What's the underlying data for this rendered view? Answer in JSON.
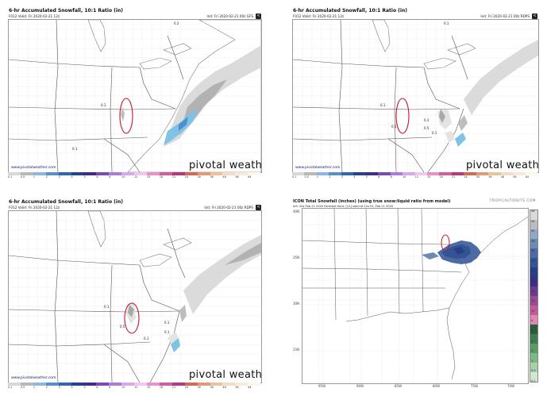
{
  "panels": [
    {
      "title": "6-hr Accumulated Snowfall, 10:1 Ratio (in)",
      "subtitle": "F012 Valid: Fri 2020-02-21 12z",
      "init": "Init: Fri 2020-02-21 00z GFS",
      "brand": "pivotal weather",
      "url": "www.pivotalweather.com",
      "map_labels": [
        "0.1",
        "0.2",
        "0.1"
      ]
    },
    {
      "title": "6-hr Accumulated Snowfall, 10:1 Ratio (in)",
      "subtitle": "F012 Valid: Fri 2020-02-21 12z",
      "init": "Init: Fri 2020-02-21 00z RDPS",
      "brand": "pivotal weather",
      "url": "www.pivotalweather.com",
      "map_labels": [
        "0.1",
        "0.5",
        "0.3",
        "0.5",
        "0.1",
        "0.1"
      ]
    },
    {
      "title": "6-hr Accumulated Snowfall, 10:1 Ratio (in)",
      "subtitle": "F012 Valid: Fri 2020-02-21 12z",
      "init": "Init: Fri 2020-02-21 00z RDPS",
      "brand": "pivotal weather",
      "url": "www.pivotalweather.com",
      "map_labels": [
        "0.1",
        "0.5",
        "0.1",
        "0.1",
        "0.1"
      ]
    },
    {
      "title": "ICON Total Snowfall (inches) (using true snow:liquid ratio from model)",
      "subtitle": "Init: 00z Feb 21 2020   Forecast Hour: [12]   valid at 12z Fri, Feb 21 2020",
      "source": "TROPICALTIDBITS.COM",
      "lat_labels": [
        "40N",
        "35N",
        "30N",
        "25N"
      ],
      "lon_labels": [
        "95W",
        "90W",
        "85W",
        "80W",
        "75W",
        "70W"
      ],
      "scale_labels": [
        "48",
        "44",
        "40",
        "36",
        "32",
        "28",
        "24",
        "20",
        "16",
        "12",
        "10",
        "8",
        "6",
        "4",
        "2",
        "1",
        "0.5",
        "0.1"
      ]
    }
  ],
  "pivotal_scale": {
    "labels": [
      "0.1",
      "0.5",
      "1",
      "2",
      "3",
      "4",
      "5",
      "6",
      "8",
      "10",
      "12",
      "15",
      "18",
      "21",
      "24",
      "30",
      "36",
      "48",
      "56",
      "64"
    ],
    "colors": [
      "#d8d8d8",
      "#b8b8b8",
      "#8fb6e0",
      "#5a8fcc",
      "#3365b0",
      "#26438f",
      "#3e2d8a",
      "#7a4bb5",
      "#b07bd6",
      "#d8a8e8",
      "#f0c7f0",
      "#e593c9",
      "#cf5fa0",
      "#b8387a",
      "#d26a5a",
      "#e09a76",
      "#ebc29e",
      "#f3dcc4",
      "#f7ead8",
      "#fdf6ec"
    ]
  },
  "icon_scale_colors": [
    "#d9d9d9",
    "#bcbcbc",
    "#8fa8c4",
    "#6d8ab2",
    "#4d6aa4",
    "#335494",
    "#283f86",
    "#3a2e86",
    "#6b3a8f",
    "#9a4a92",
    "#c35a97",
    "#df86b5",
    "#2b5b3a",
    "#3f7b4f",
    "#5a9a66",
    "#7cb784",
    "#a4d1a8",
    "#cfe8cf"
  ],
  "colors": {
    "snow_light": "#d5d5d5",
    "snow_mid": "#a8a8a8",
    "snow_blue": "#7ec3e6",
    "snow_deepblue": "#2f4fb0",
    "circle": "#c0182a"
  }
}
